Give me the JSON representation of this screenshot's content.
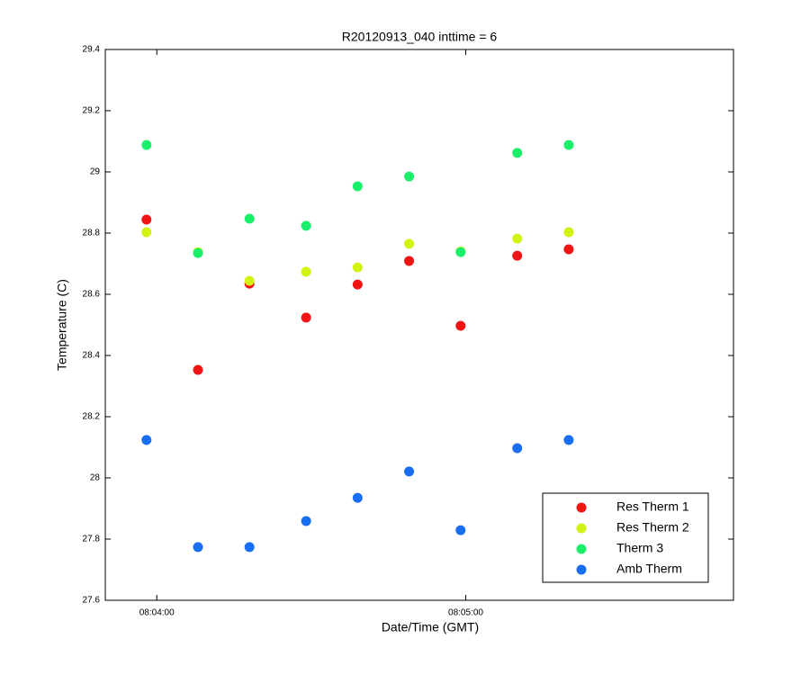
{
  "chart_data": {
    "type": "scatter",
    "title": "R20120913_040 inttime = 6",
    "x_label": "Date/Time (GMT)",
    "y_label": "Temperature (C)",
    "x": [
      "08:03:58",
      "08:04:08",
      "08:04:18",
      "08:04:29",
      "08:04:39",
      "08:04:49",
      "08:04:59",
      "08:05:10",
      "08:05:20"
    ],
    "series": [
      {
        "name": "Res Therm 1",
        "color": "#f01414",
        "values": [
          28.844,
          28.353,
          28.635,
          28.524,
          28.632,
          28.709,
          28.497,
          28.726,
          28.747
        ]
      },
      {
        "name": "Res Therm 2",
        "color": "#d4f212",
        "values": [
          28.803,
          28.738,
          28.644,
          28.674,
          28.688,
          28.765,
          28.74,
          28.782,
          28.803
        ]
      },
      {
        "name": "Therm 3",
        "color": "#1aef6c",
        "values": [
          29.088,
          28.735,
          28.847,
          28.824,
          28.953,
          28.985,
          28.738,
          29.062,
          29.088
        ]
      },
      {
        "name": "Amb Therm",
        "color": "#1a6ef2",
        "values": [
          28.124,
          27.774,
          27.774,
          27.859,
          27.935,
          28.021,
          27.829,
          28.097,
          28.124
        ]
      }
    ],
    "xlim": [
      "08:03:50",
      "08:05:52"
    ],
    "xticks": [
      "08:04:00",
      "08:05:00"
    ],
    "ylim": [
      27.6,
      29.4
    ],
    "yticks": [
      27.6,
      27.8,
      28,
      28.2,
      28.4,
      28.6,
      28.8,
      29,
      29.2,
      29.4
    ],
    "legend": "lower right"
  }
}
